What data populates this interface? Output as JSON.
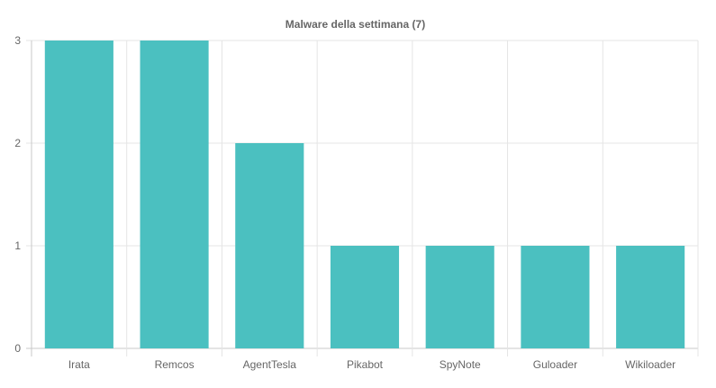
{
  "chart_data": {
    "type": "bar",
    "title": "Malware della settimana (7)",
    "categories": [
      "Irata",
      "Remcos",
      "AgentTesla",
      "Pikabot",
      "SpyNote",
      "Guloader",
      "Wikiloader"
    ],
    "values": [
      3,
      3,
      2,
      1,
      1,
      1,
      1
    ],
    "ylim": [
      0,
      3
    ],
    "yticks": [
      "0",
      "1",
      "2",
      "3"
    ],
    "grid": true,
    "bar_color": "#4bc0c0",
    "grid_color": "#e5e5e5",
    "text_color": "#666666"
  }
}
